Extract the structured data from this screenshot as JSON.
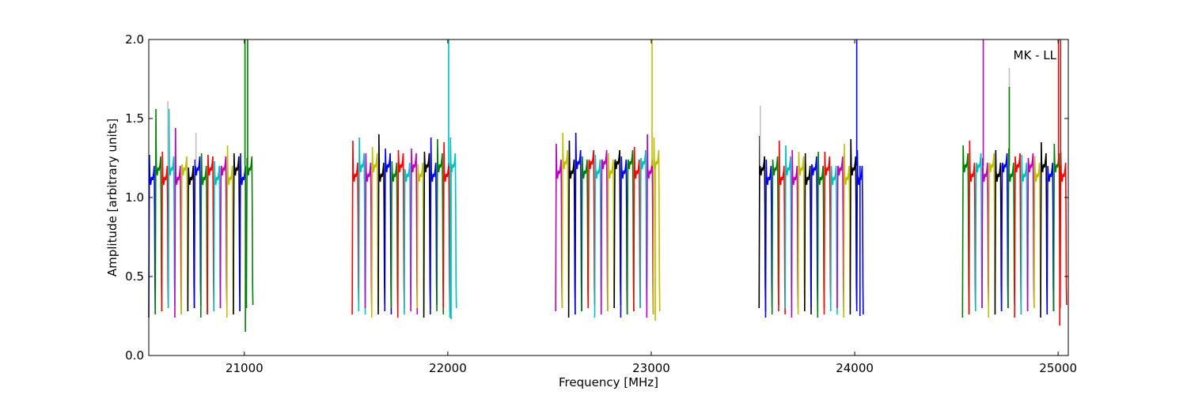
{
  "chart_data": {
    "type": "line",
    "title": "",
    "annotation": "MK - LL",
    "xlabel": "Frequency [MHz]",
    "ylabel": "Amplitude [arbitrary units]",
    "xlim": [
      20530,
      25050
    ],
    "ylim": [
      0.0,
      2.0
    ],
    "xticks": [
      21000,
      22000,
      23000,
      24000,
      25000
    ],
    "xtick_labels": [
      "21000",
      "22000",
      "23000",
      "24000",
      "25000"
    ],
    "yticks": [
      0.0,
      0.5,
      1.0,
      1.5,
      2.0
    ],
    "ytick_labels": [
      "0.0",
      "0.5",
      "1.0",
      "1.5",
      "2.0"
    ],
    "grid": false,
    "legend": "none",
    "color_cycle": [
      "#0000ff",
      "#008000",
      "#ff0000",
      "#00bfbf",
      "#bf00bf",
      "#bfbf00",
      "#000000"
    ],
    "channel_width_mhz": 32,
    "band_starts": [
      20530,
      21530,
      22530,
      23530,
      24530
    ],
    "channels_per_band": 16,
    "band_start_color_index": [
      0,
      2,
      4,
      6,
      1
    ],
    "band_channel_peaks": [
      [
        1.27,
        1.56,
        1.29,
        1.56,
        1.44,
        1.21,
        1.19,
        1.24,
        1.28,
        1.27,
        1.23,
        1.19,
        1.33,
        1.28,
        1.28,
        1.25
      ],
      [
        1.36,
        1.38,
        1.28,
        1.32,
        1.4,
        1.31,
        1.23,
        1.3,
        1.18,
        1.31,
        1.21,
        1.29,
        1.38,
        1.37,
        1.35,
        1.38
      ],
      [
        1.34,
        1.41,
        1.36,
        1.41,
        1.26,
        1.22,
        1.27,
        1.23,
        1.28,
        1.22,
        1.26,
        1.21,
        1.32,
        1.25,
        1.4,
        1.38
      ],
      [
        1.39,
        1.24,
        1.24,
        1.36,
        1.33,
        1.3,
        1.29,
        1.28,
        1.21,
        1.29,
        1.29,
        1.2,
        1.19,
        1.34,
        1.37,
        1.3
      ],
      [
        1.33,
        1.36,
        1.19,
        1.25,
        1.2,
        1.3,
        1.2,
        1.31,
        1.26,
        1.27,
        1.25,
        1.26,
        1.35,
        1.2,
        1.34,
        1.29
      ]
    ],
    "spikes": [
      {
        "x": 20624,
        "y": 1.61,
        "color": "#bfbfbf"
      },
      {
        "x": 20762,
        "y": 1.41,
        "color": "#bfbfbf"
      },
      {
        "x": 21003,
        "y": 2.0,
        "color": "#008000"
      },
      {
        "x": 21016,
        "y": 2.0,
        "color": "#008000"
      },
      {
        "x": 21005,
        "y": 0.15,
        "color": "#008000"
      },
      {
        "x": 22004,
        "y": 2.0,
        "color": "#00bfbf"
      },
      {
        "x": 22016,
        "y": 0.23,
        "color": "#00bfbf"
      },
      {
        "x": 23004,
        "y": 2.0,
        "color": "#bfbf00"
      },
      {
        "x": 23020,
        "y": 0.22,
        "color": "#bfbf00"
      },
      {
        "x": 23536,
        "y": 1.58,
        "color": "#bfbfbf"
      },
      {
        "x": 24010,
        "y": 2.0,
        "color": "#0000ff"
      },
      {
        "x": 24026,
        "y": 0.25,
        "color": "#0000ff"
      },
      {
        "x": 24632,
        "y": 2.0,
        "color": "#bf00bf"
      },
      {
        "x": 24760,
        "y": 1.82,
        "color": "#bfbfbf"
      },
      {
        "x": 24760,
        "y": 1.7,
        "color": "#008000"
      },
      {
        "x": 25002,
        "y": 2.0,
        "color": "#ff0000"
      },
      {
        "x": 25012,
        "y": 2.0,
        "color": "#a52a2a"
      },
      {
        "x": 25008,
        "y": 0.19,
        "color": "#ff0000"
      }
    ]
  }
}
